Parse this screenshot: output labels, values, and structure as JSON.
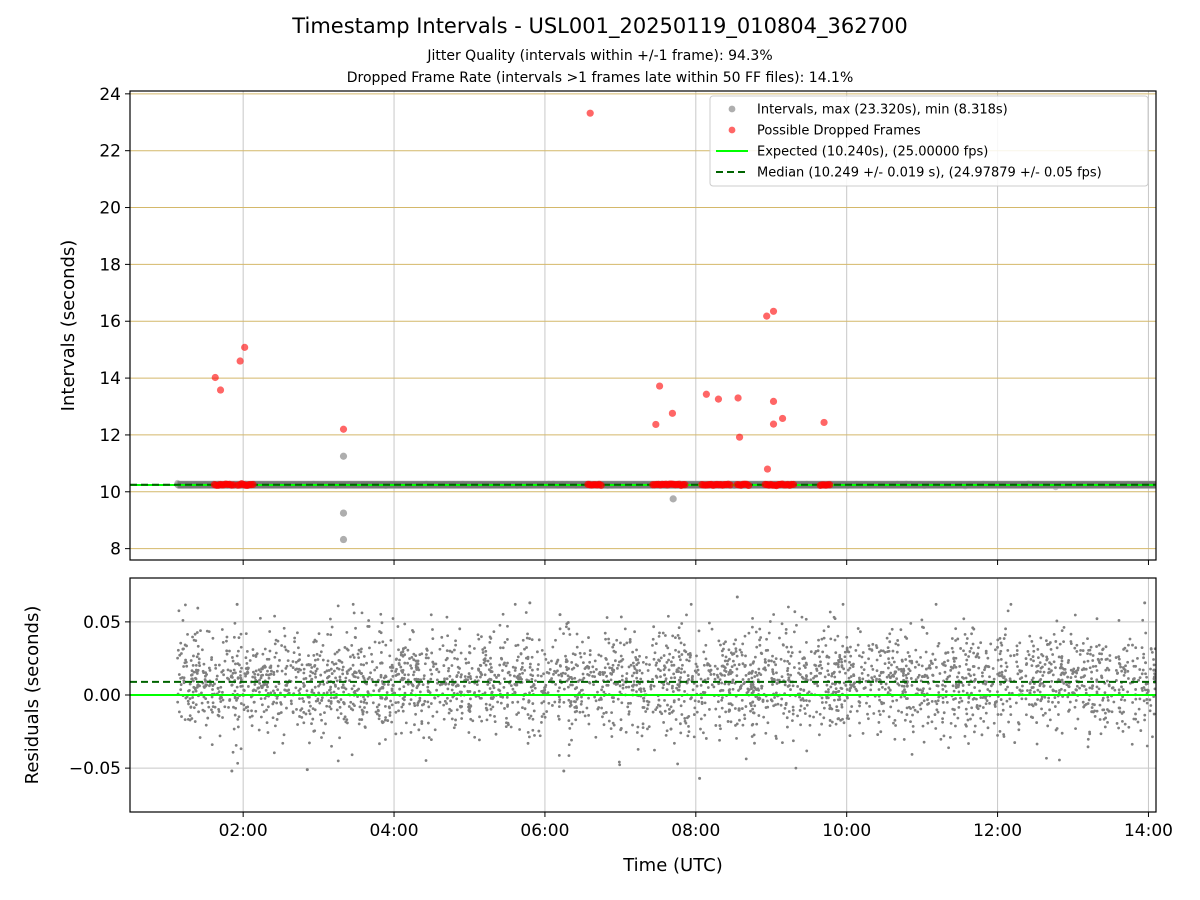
{
  "chart_data": {
    "title": "Timestamp Intervals - USL001_20250119_010804_362700",
    "subtitle_lines": [
      "Jitter Quality (intervals within +/-1 frame): 94.3%",
      "Dropped Frame Rate (intervals >1 frames late within 50 FF files): 14.1%"
    ],
    "colors": {
      "intervals": "#a0a0a0",
      "dropped": "#ff0000",
      "expected": "#00ff00",
      "median": "#006400",
      "residuals": "#808080",
      "hgrid_top": "#d4b86a",
      "grid": "#c8c8c8",
      "median_band": "#555555"
    },
    "x_axis": {
      "label": "Time (UTC)",
      "range_hours": [
        0.5,
        14.1
      ],
      "ticks": [
        {
          "value": 2,
          "label": "02:00"
        },
        {
          "value": 4,
          "label": "04:00"
        },
        {
          "value": 6,
          "label": "06:00"
        },
        {
          "value": 8,
          "label": "08:00"
        },
        {
          "value": 10,
          "label": "10:00"
        },
        {
          "value": 12,
          "label": "12:00"
        },
        {
          "value": 14,
          "label": "14:00"
        }
      ]
    },
    "top_panel": {
      "type": "scatter",
      "ylabel": "Intervals (seconds)",
      "ylim": [
        7.6,
        24.1
      ],
      "yticks": [
        {
          "value": 8,
          "label": "8"
        },
        {
          "value": 10,
          "label": "10"
        },
        {
          "value": 12,
          "label": "12"
        },
        {
          "value": 14,
          "label": "14"
        },
        {
          "value": 16,
          "label": "16"
        },
        {
          "value": 18,
          "label": "18"
        },
        {
          "value": 20,
          "label": "20"
        },
        {
          "value": 22,
          "label": "22"
        },
        {
          "value": 24,
          "label": "24"
        }
      ],
      "expected_value": 10.24,
      "median_value": 10.249,
      "baseline_interval_range_hours": [
        1.13,
        14.1
      ],
      "interval_outliers": [
        {
          "x": 3.33,
          "y": 11.25
        },
        {
          "x": 3.33,
          "y": 9.25
        },
        {
          "x": 3.33,
          "y": 8.32
        },
        {
          "x": 7.7,
          "y": 9.75
        }
      ],
      "dropped_points": [
        {
          "x": 1.63,
          "y": 14.02
        },
        {
          "x": 1.7,
          "y": 13.58
        },
        {
          "x": 1.96,
          "y": 14.6
        },
        {
          "x": 2.02,
          "y": 15.08
        },
        {
          "x": 3.33,
          "y": 12.2
        },
        {
          "x": 6.6,
          "y": 23.32
        },
        {
          "x": 7.47,
          "y": 12.37
        },
        {
          "x": 7.52,
          "y": 13.72
        },
        {
          "x": 7.69,
          "y": 12.76
        },
        {
          "x": 8.14,
          "y": 13.43
        },
        {
          "x": 8.3,
          "y": 13.26
        },
        {
          "x": 8.56,
          "y": 13.3
        },
        {
          "x": 8.58,
          "y": 11.92
        },
        {
          "x": 8.94,
          "y": 16.18
        },
        {
          "x": 9.03,
          "y": 16.35
        },
        {
          "x": 9.03,
          "y": 13.18
        },
        {
          "x": 9.03,
          "y": 12.38
        },
        {
          "x": 9.15,
          "y": 12.58
        },
        {
          "x": 8.95,
          "y": 10.8
        },
        {
          "x": 9.7,
          "y": 12.44
        }
      ],
      "dropped_clusters_at_baseline": [
        {
          "from": 1.62,
          "to": 1.88
        },
        {
          "from": 1.93,
          "to": 2.15
        },
        {
          "from": 6.57,
          "to": 6.76
        },
        {
          "from": 7.43,
          "to": 7.88
        },
        {
          "from": 8.08,
          "to": 8.46
        },
        {
          "from": 8.55,
          "to": 8.72
        },
        {
          "from": 8.92,
          "to": 9.3
        },
        {
          "from": 9.65,
          "to": 9.8
        }
      ],
      "legend": {
        "position": "upper right",
        "entries": [
          {
            "label": "Intervals, max (23.320s), min (8.318s)",
            "symbol": "dot",
            "color": "#a0a0a0"
          },
          {
            "label": "Possible Dropped Frames",
            "symbol": "dot",
            "color": "#ff0000"
          },
          {
            "label": "Expected (10.240s), (25.00000 fps)",
            "symbol": "line",
            "color": "#00ff00"
          },
          {
            "label": "Median (10.249 +/- 0.019 s), (24.97879 +/- 0.05 fps)",
            "symbol": "dashed",
            "color": "#006400"
          }
        ]
      }
    },
    "bottom_panel": {
      "type": "scatter",
      "ylabel": "Residuals (seconds)",
      "ylim": [
        -0.08,
        0.08
      ],
      "yticks": [
        {
          "value": 0.05,
          "label": "0.05"
        },
        {
          "value": 0.0,
          "label": "0.00"
        },
        {
          "value": -0.05,
          "label": "−0.05"
        }
      ],
      "expected_value": 0.0,
      "median_value": 0.009,
      "residual_range_hours": [
        1.13,
        14.1
      ],
      "residual_spread_sigma": 0.019,
      "residual_outliers": [
        {
          "x": 1.85,
          "y": -0.052
        },
        {
          "x": 1.92,
          "y": 0.062
        },
        {
          "x": 2.85,
          "y": -0.051
        },
        {
          "x": 6.2,
          "y": 0.055
        },
        {
          "x": 5.8,
          "y": 0.063
        },
        {
          "x": 6.25,
          "y": -0.052
        },
        {
          "x": 8.05,
          "y": -0.057
        },
        {
          "x": 8.55,
          "y": 0.067
        },
        {
          "x": 13.95,
          "y": 0.063
        }
      ]
    }
  }
}
